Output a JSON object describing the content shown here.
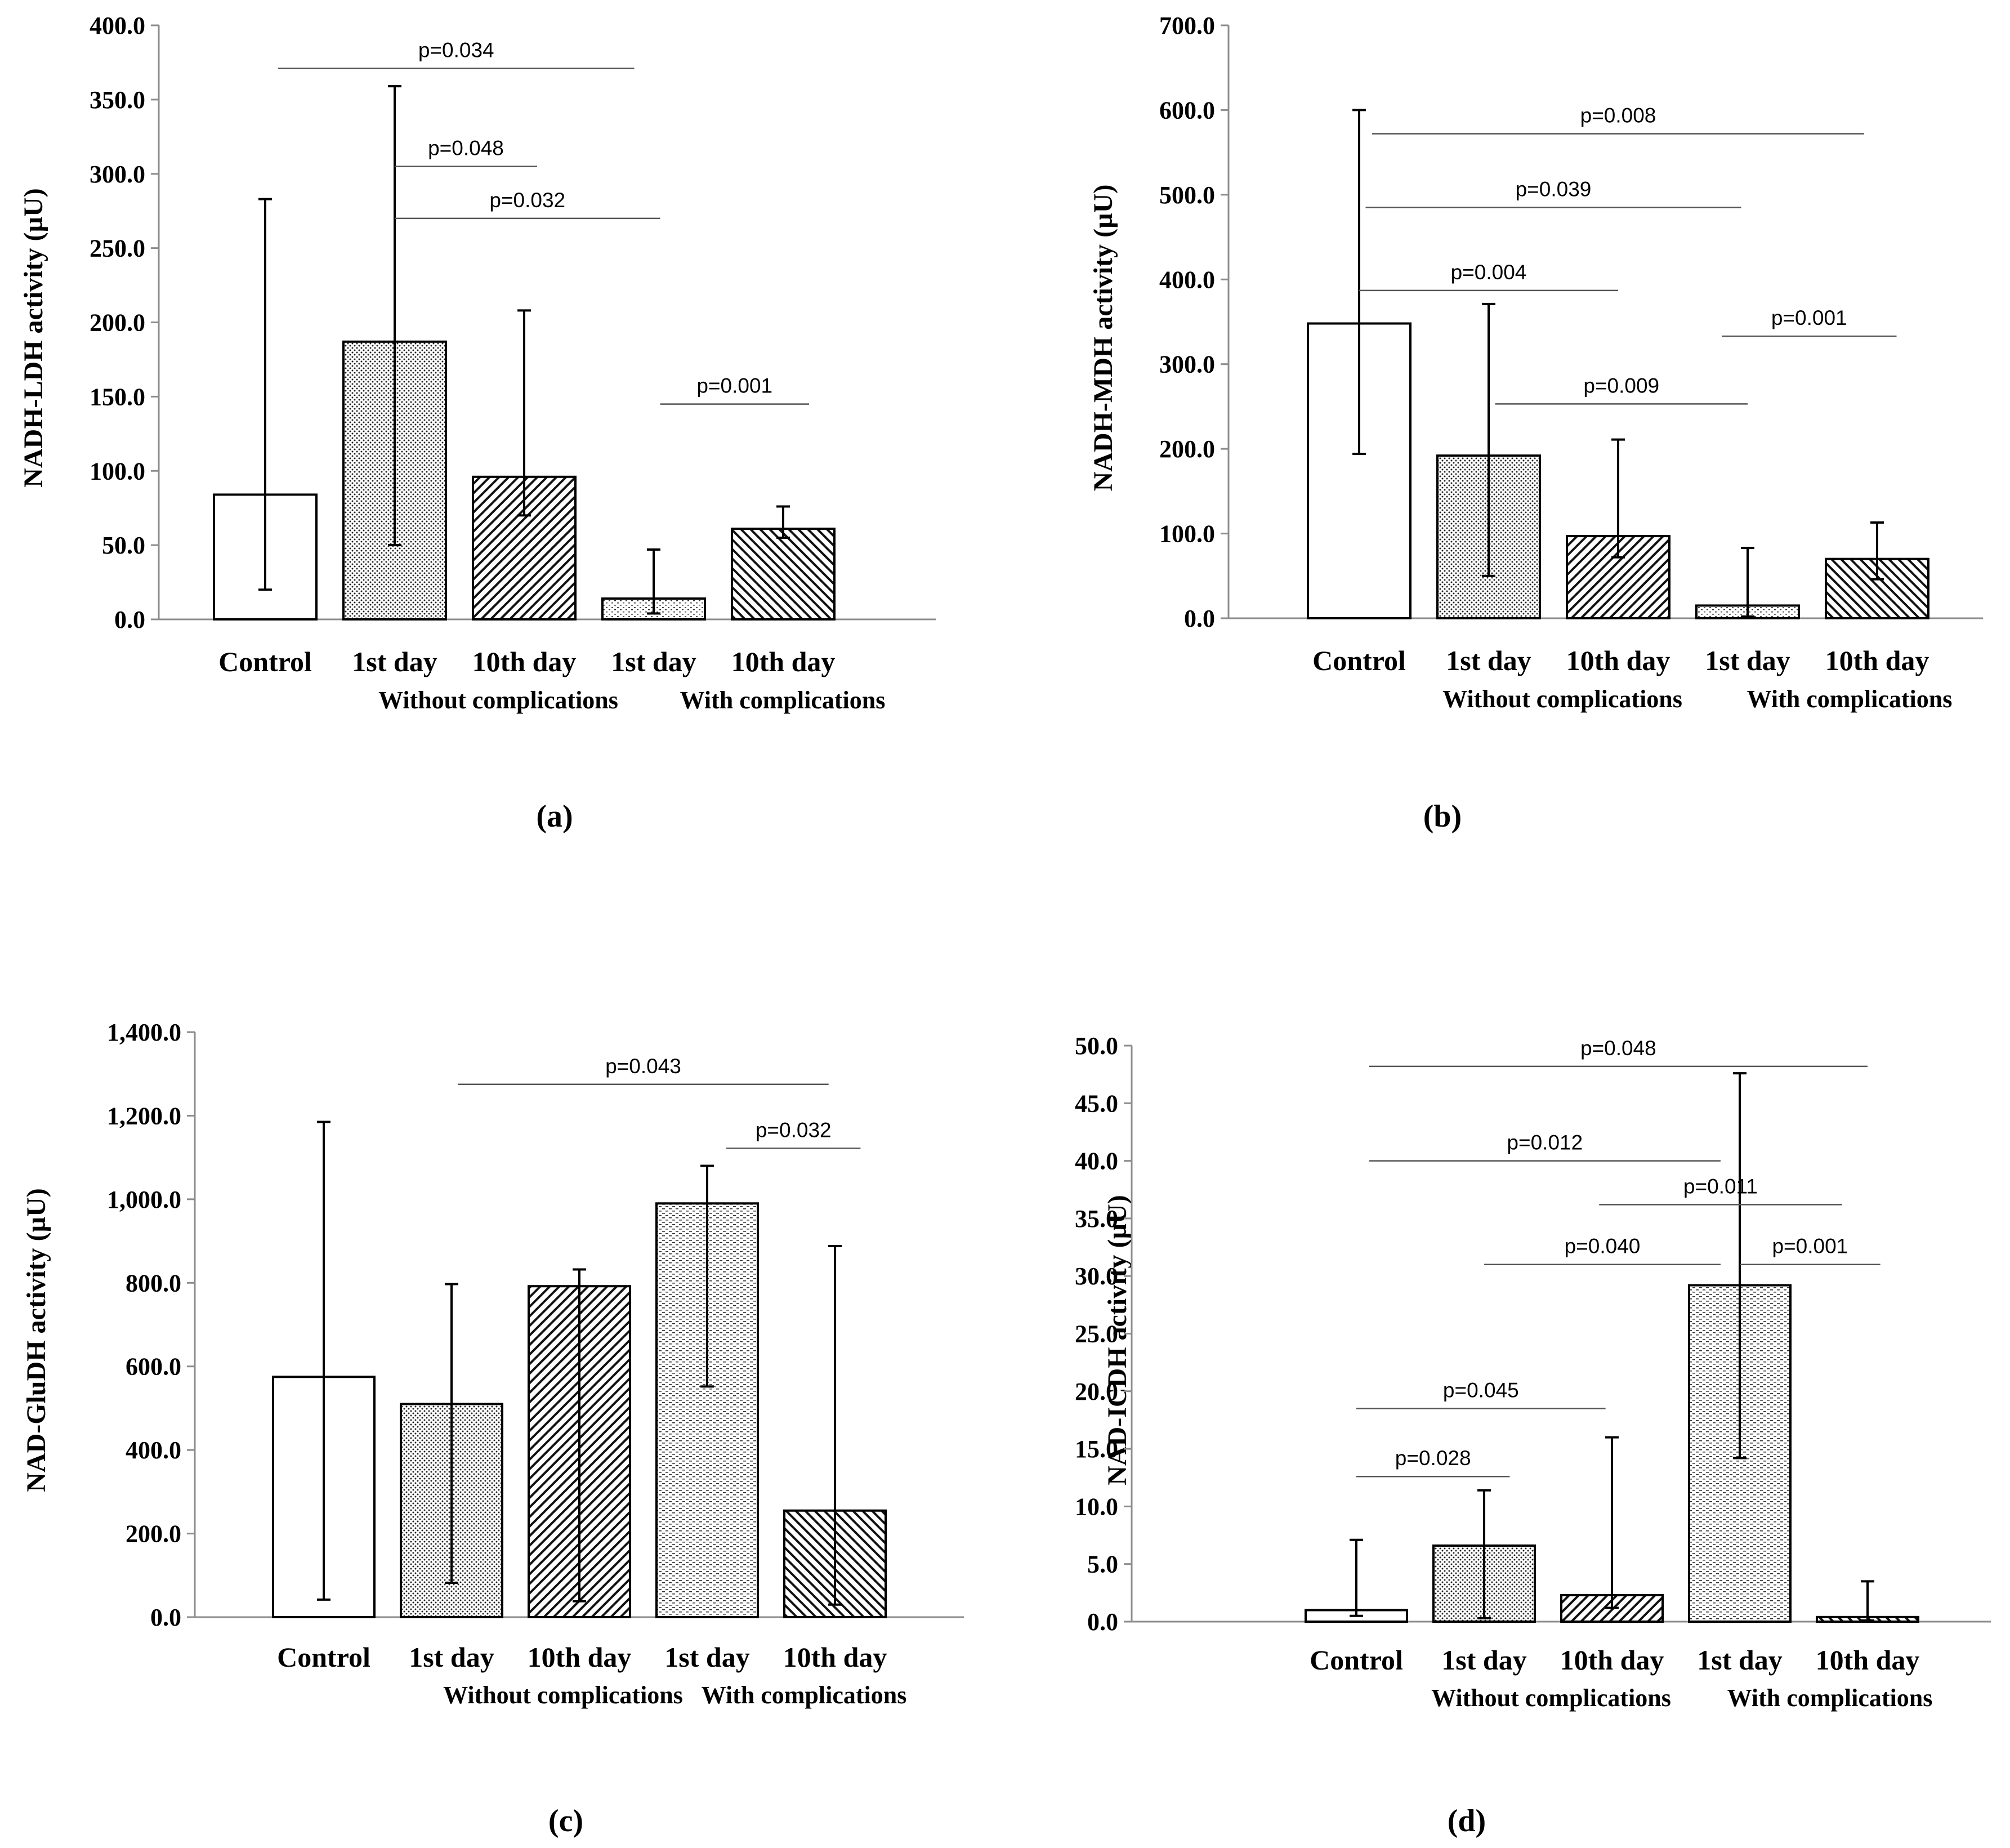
{
  "colors": {
    "axis": "#8c8c8c",
    "bar_edge": "#000000",
    "bar_fill": "#ffffff",
    "text": "#000000"
  },
  "group_labels": [
    "Without  complications",
    "With complications"
  ],
  "chart_data": [
    {
      "type": "bar",
      "panel_label": "(a)",
      "ylabel": "NADH-LDH activity (µU)",
      "ylim": [
        0,
        400
      ],
      "ytick_step": 50,
      "ytick_labels": [
        "0.0",
        "50.0",
        "100.0",
        "150.0",
        "200.0",
        "250.0",
        "300.0",
        "350.0",
        "400.0"
      ],
      "categories": [
        "Control",
        "1st day",
        "10th day",
        "1st day",
        "10th day"
      ],
      "groups": [
        {
          "label": "Without  complications",
          "categories": [
            "1st day",
            "10th day"
          ]
        },
        {
          "label": "With complications",
          "categories": [
            "1st day",
            "10th day"
          ]
        }
      ],
      "patterns": [
        "none",
        "dots",
        "hatch-back",
        "dots-sparse",
        "hatch-fwd"
      ],
      "values": [
        84,
        187,
        96,
        14,
        61
      ],
      "error_low": [
        20,
        50,
        70,
        4,
        55
      ],
      "error_high": [
        283,
        359,
        208,
        47,
        76
      ],
      "annotations": [
        {
          "text": "p=0.034",
          "from_category": 0.1,
          "to_category": 2.85,
          "y": 371
        },
        {
          "text": "p=0.048",
          "from_category": 1.0,
          "to_category": 2.1,
          "y": 305
        },
        {
          "text": "p=0.032",
          "from_category": 1.0,
          "to_category": 3.05,
          "y": 270
        },
        {
          "text": "p=0.001",
          "from_category": 3.05,
          "to_category": 4.2,
          "y": 145
        }
      ]
    },
    {
      "type": "bar",
      "panel_label": "(b)",
      "ylabel": "NADH-MDH activity (µU)",
      "ylim": [
        0,
        700
      ],
      "ytick_step": 100,
      "ytick_labels": [
        "0.0",
        "100.0",
        "200.0",
        "300.0",
        "400.0",
        "500.0",
        "600.0",
        "700.0"
      ],
      "categories": [
        "Control",
        "1st day",
        "10th day",
        "1st day",
        "10th day"
      ],
      "groups": [
        {
          "label": "Without complications",
          "categories": [
            "1st day",
            "10th day"
          ]
        },
        {
          "label": "With complications",
          "categories": [
            "1st day",
            "10th day"
          ]
        }
      ],
      "patterns": [
        "none",
        "dots",
        "hatch-back",
        "dots-sparse",
        "hatch-fwd"
      ],
      "values": [
        348,
        192,
        97,
        15,
        70
      ],
      "error_low": [
        194,
        50,
        72,
        2,
        46
      ],
      "error_high": [
        600,
        371,
        211,
        83,
        113
      ],
      "annotations": [
        {
          "text": "p=0.008",
          "from_category": 0.1,
          "to_category": 3.9,
          "y": 572
        },
        {
          "text": "p=0.039",
          "from_category": 0.05,
          "to_category": 2.95,
          "y": 485
        },
        {
          "text": "p=0.004",
          "from_category": 0.0,
          "to_category": 2.0,
          "y": 387
        },
        {
          "text": "p=0.001",
          "from_category": 2.8,
          "to_category": 4.15,
          "y": 333
        },
        {
          "text": "p=0.009",
          "from_category": 1.05,
          "to_category": 3.0,
          "y": 253
        }
      ]
    },
    {
      "type": "bar",
      "panel_label": "(c)",
      "ylabel": "NAD-GluDH activity (µU)",
      "ylim": [
        0,
        1400
      ],
      "ytick_step": 200,
      "ytick_labels": [
        "0.0",
        "200.0",
        "400.0",
        "600.0",
        "800.0",
        "1,000.0",
        "1,200.0",
        "1,400.0"
      ],
      "categories": [
        "Control",
        "1st day",
        "10th day",
        "1st day",
        "10th day"
      ],
      "groups": [
        {
          "label": "Without  complications",
          "categories": [
            "1st day",
            "10th day"
          ]
        },
        {
          "label": "With complications",
          "categories": [
            "1st day",
            "10th day"
          ]
        }
      ],
      "patterns": [
        "none",
        "dots",
        "hatch-back",
        "lines-h",
        "hatch-fwd"
      ],
      "values": [
        575,
        510,
        792,
        990,
        255
      ],
      "error_low": [
        42,
        82,
        38,
        552,
        30
      ],
      "error_high": [
        1185,
        797,
        832,
        1080,
        888
      ],
      "annotations": [
        {
          "text": "p=0.043",
          "from_category": 1.05,
          "to_category": 3.95,
          "y": 1275
        },
        {
          "text": "p=0.032",
          "from_category": 3.15,
          "to_category": 4.2,
          "y": 1122
        }
      ]
    },
    {
      "type": "bar",
      "panel_label": "(d)",
      "ylabel": "NAD-ICDH activity (µU)",
      "ylim": [
        0,
        50
      ],
      "ytick_step": 5,
      "ytick_labels": [
        "0.0",
        "5.0",
        "10.0",
        "15.0",
        "20.0",
        "25.0",
        "30.0",
        "35.0",
        "40.0",
        "45.0",
        "50.0"
      ],
      "categories": [
        "Control",
        "1st day",
        "10th day",
        "1st day",
        "10th day"
      ],
      "groups": [
        {
          "label": "Without complications",
          "categories": [
            "1st day",
            "10th day"
          ]
        },
        {
          "label": "With complications",
          "categories": [
            "1st day",
            "10th day"
          ]
        }
      ],
      "patterns": [
        "none",
        "dots",
        "hatch-back",
        "lines-h",
        "hatch-fwd"
      ],
      "values": [
        1.0,
        6.6,
        2.3,
        29.2,
        0.4
      ],
      "error_low": [
        0.5,
        0.3,
        1.2,
        14.2,
        0.1
      ],
      "error_high": [
        7.1,
        11.4,
        16.0,
        47.6,
        3.5
      ],
      "annotations": [
        {
          "text": "p=0.048",
          "from_category": 0.1,
          "to_category": 4.0,
          "y": 48.2
        },
        {
          "text": "p=0.012",
          "from_category": 0.1,
          "to_category": 2.85,
          "y": 40.0
        },
        {
          "text": "p=0.011",
          "from_category": 1.9,
          "to_category": 3.8,
          "y": 36.2
        },
        {
          "text": "p=0.040",
          "from_category": 1.0,
          "to_category": 2.85,
          "y": 31.0
        },
        {
          "text": "p=0.001",
          "from_category": 3.0,
          "to_category": 4.1,
          "y": 31.0
        },
        {
          "text": "p=0.045",
          "from_category": 0.0,
          "to_category": 1.95,
          "y": 18.5
        },
        {
          "text": "p=0.028",
          "from_category": 0.0,
          "to_category": 1.2,
          "y": 12.6
        }
      ]
    }
  ]
}
